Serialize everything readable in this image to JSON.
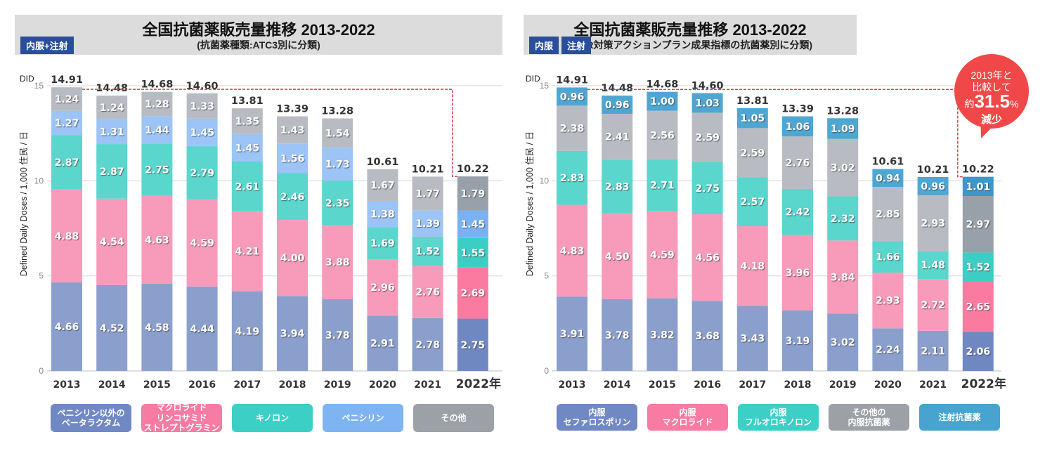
{
  "charts": [
    {
      "id": "left",
      "title": "全国抗菌薬販売量推移 2013-2022",
      "subtitle": "(抗菌薬種類:ATC3別に分類)",
      "tags": [
        "内服+注射"
      ],
      "legend": [
        {
          "label": "ペニシリン以外の\nベータラクタム",
          "color": "#7088c4"
        },
        {
          "label": "マクロライド\nリンコサミド\nストレプトグラミン",
          "color": "#f77ba2"
        },
        {
          "label": "キノロン",
          "color": "#3ccfc6"
        },
        {
          "label": "ペニシリン",
          "color": "#7fb4f2"
        },
        {
          "label": "その他",
          "color": "#9ca1a8"
        }
      ]
    },
    {
      "id": "right",
      "title": "全国抗菌薬販売量推移 2013-2022",
      "subtitle": "(AMR対策アクションプラン成果指標の抗菌薬別に分類)",
      "tags": [
        "内服",
        "注射"
      ],
      "legend": [
        {
          "label": "内服\nセファロスポリン",
          "color": "#7088c4"
        },
        {
          "label": "内服\nマクロライド",
          "color": "#f77ba2"
        },
        {
          "label": "内服\nフルオロキノロン",
          "color": "#3ccfc6"
        },
        {
          "label": "その他の\n内服抗菌薬",
          "color": "#9ca1a8"
        },
        {
          "label": "注射抗菌薬",
          "color": "#47a3d0"
        }
      ],
      "callout": {
        "line1": "2013年と",
        "line2": "比較して",
        "prefix": "約",
        "value": "31.5",
        "suffix": "%",
        "line4": "減少",
        "color": "#f04848"
      }
    }
  ],
  "chart_data": [
    {
      "type": "bar",
      "stacked": true,
      "title": "全国抗菌薬販売量推移 2013-2022",
      "subtitle": "(抗菌薬種類:ATC3別に分類)",
      "ylabel": "Defined  Daily Doses / 1,000 住民 / 日",
      "yunit": "DID",
      "ylim": [
        0,
        15
      ],
      "yticks": [
        0,
        5,
        10,
        15
      ],
      "grid": true,
      "categories": [
        "2013",
        "2014",
        "2015",
        "2016",
        "2017",
        "2018",
        "2019",
        "2020",
        "2021",
        "2022年"
      ],
      "totals": [
        "14.91",
        "14.48",
        "14.68",
        "14.60",
        "13.81",
        "13.39",
        "13.28",
        "10.61",
        "10.21",
        "10.22"
      ],
      "series": [
        {
          "name": "ペニシリン以外のベータラクタム",
          "color": "#8b9fcd",
          "highlight": "#6f88c2",
          "values": [
            4.66,
            4.52,
            4.58,
            4.44,
            4.19,
            3.94,
            3.78,
            2.91,
            2.78,
            2.75
          ]
        },
        {
          "name": "マクロライド リンコサミド ストレプトグラミン",
          "color": "#f89bbb",
          "highlight": "#fa7aa0",
          "values": [
            4.88,
            4.54,
            4.63,
            4.59,
            4.21,
            4.0,
            3.88,
            2.96,
            2.76,
            2.69
          ]
        },
        {
          "name": "キノロン",
          "color": "#5ad6cd",
          "highlight": "#3ccec4",
          "values": [
            2.87,
            2.87,
            2.75,
            2.79,
            2.61,
            2.46,
            2.35,
            1.69,
            1.52,
            1.55
          ]
        },
        {
          "name": "ペニシリン",
          "color": "#9cc4f6",
          "highlight": "#7bb1f2",
          "values": [
            1.27,
            1.31,
            1.44,
            1.45,
            1.45,
            1.56,
            1.73,
            1.38,
            1.39,
            1.45
          ]
        },
        {
          "name": "その他",
          "color": "#b8bcc2",
          "highlight": "#98a0a9",
          "values": [
            1.24,
            1.24,
            1.28,
            1.33,
            1.35,
            1.43,
            1.54,
            1.67,
            1.77,
            1.79
          ]
        }
      ],
      "annotation": "dashed reference line from 2013 total to 2022"
    },
    {
      "type": "bar",
      "stacked": true,
      "title": "全国抗菌薬販売量推移 2013-2022",
      "subtitle": "(AMR対策アクションプラン成果指標の抗菌薬別に分類)",
      "ylabel": "Defined  Daily Doses / 1,000 住民 / 日",
      "yunit": "DID",
      "ylim": [
        0,
        15
      ],
      "yticks": [
        0,
        5,
        10,
        15
      ],
      "grid": true,
      "categories": [
        "2013",
        "2014",
        "2015",
        "2016",
        "2017",
        "2018",
        "2019",
        "2020",
        "2021",
        "2022年"
      ],
      "totals": [
        "14.91",
        "14.48",
        "14.68",
        "14.60",
        "13.81",
        "13.39",
        "13.28",
        "10.61",
        "10.21",
        "10.22"
      ],
      "series": [
        {
          "name": "内服 セファロスポリン",
          "color": "#8b9fcd",
          "highlight": "#6f88c2",
          "values": [
            3.91,
            3.78,
            3.82,
            3.68,
            3.43,
            3.19,
            3.02,
            2.24,
            2.11,
            2.06
          ]
        },
        {
          "name": "内服 マクロライド",
          "color": "#f89bbb",
          "highlight": "#fa7aa0",
          "values": [
            4.83,
            4.5,
            4.59,
            4.56,
            4.18,
            3.96,
            3.84,
            2.93,
            2.72,
            2.65
          ]
        },
        {
          "name": "内服 フルオロキノロン",
          "color": "#5ad6cd",
          "highlight": "#3ccec4",
          "values": [
            2.83,
            2.83,
            2.71,
            2.75,
            2.57,
            2.42,
            2.32,
            1.66,
            1.48,
            1.52
          ]
        },
        {
          "name": "その他の内服抗菌薬",
          "color": "#b8bcc2",
          "highlight": "#98a0a9",
          "values": [
            2.38,
            2.41,
            2.56,
            2.59,
            2.59,
            2.76,
            3.02,
            2.85,
            2.93,
            2.97
          ]
        },
        {
          "name": "注射抗菌薬",
          "color": "#4fa6d3",
          "highlight": "#3e97c8",
          "values": [
            0.96,
            0.96,
            1.0,
            1.03,
            1.05,
            1.06,
            1.09,
            0.94,
            0.96,
            1.01
          ]
        }
      ],
      "annotation": "2013年と比較して約31.5%減少"
    }
  ]
}
